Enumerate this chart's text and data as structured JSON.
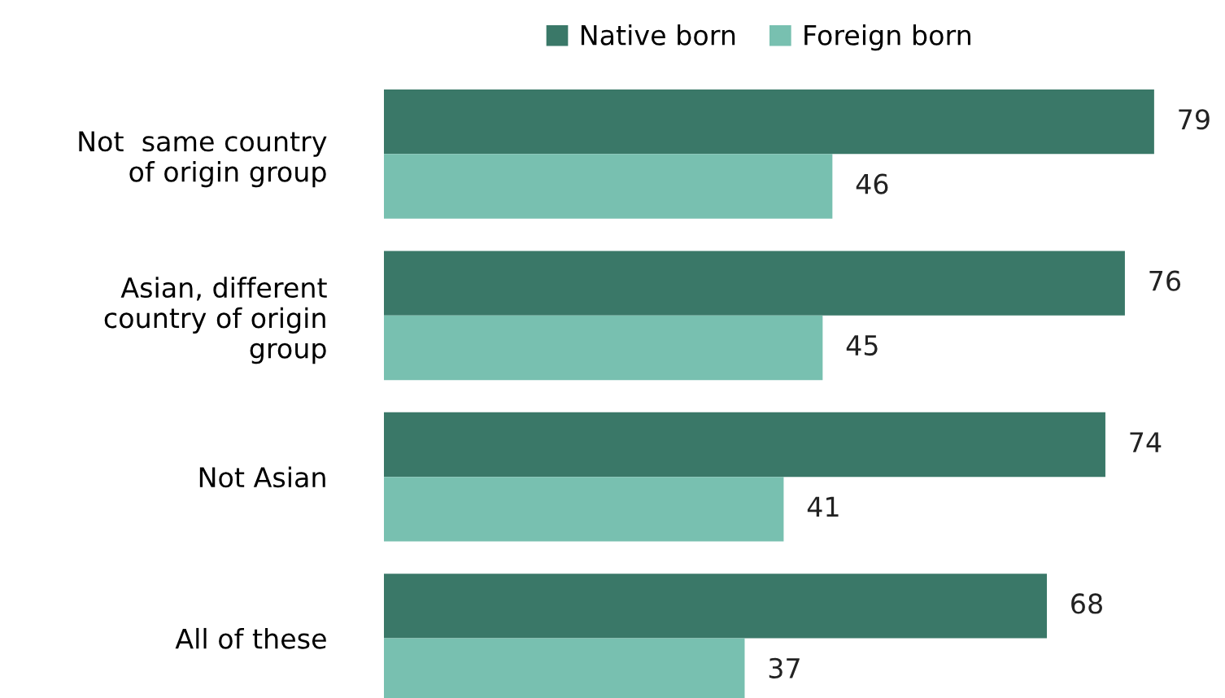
{
  "chart_data": {
    "type": "bar",
    "orientation": "horizontal",
    "categories": [
      "Not  same country\nof origin group",
      "Asian, different\ncountry of origin\ngroup",
      "Not Asian",
      "All of these"
    ],
    "series": [
      {
        "name": "Native born",
        "color": "#3a7868",
        "values": [
          79,
          76,
          74,
          68
        ]
      },
      {
        "name": "Foreign born",
        "color": "#78c0b0",
        "values": [
          46,
          45,
          41,
          37
        ]
      }
    ],
    "data_labels": true,
    "legend": "top",
    "grid": false,
    "tick_labels": "y"
  }
}
